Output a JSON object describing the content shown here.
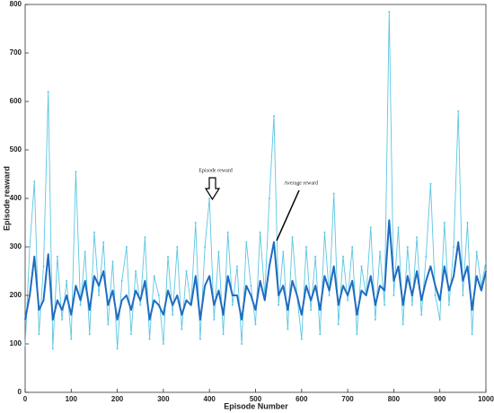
{
  "chart_data": {
    "type": "line",
    "xlabel": "Episode Number",
    "ylabel": "Episode reaward",
    "annotations": [
      "Episode reward",
      "Average reward"
    ],
    "xlim": [
      0,
      1000
    ],
    "ylim": [
      0,
      800
    ],
    "xticks": [
      0,
      100,
      200,
      300,
      400,
      500,
      600,
      700,
      800,
      900,
      1000
    ],
    "yticks": [
      0,
      100,
      200,
      300,
      400,
      500,
      600,
      700,
      800
    ],
    "x": [
      0,
      10,
      20,
      30,
      40,
      50,
      60,
      70,
      80,
      90,
      100,
      110,
      120,
      130,
      140,
      150,
      160,
      170,
      180,
      190,
      200,
      210,
      220,
      230,
      240,
      250,
      260,
      270,
      280,
      290,
      300,
      310,
      320,
      330,
      340,
      350,
      360,
      370,
      380,
      390,
      400,
      410,
      420,
      430,
      440,
      450,
      460,
      470,
      480,
      490,
      500,
      510,
      520,
      530,
      540,
      550,
      560,
      570,
      580,
      590,
      600,
      610,
      620,
      630,
      640,
      650,
      660,
      670,
      680,
      690,
      700,
      710,
      720,
      730,
      740,
      750,
      760,
      770,
      780,
      790,
      800,
      810,
      820,
      830,
      840,
      850,
      860,
      870,
      880,
      890,
      900,
      910,
      920,
      930,
      940,
      950,
      960,
      970,
      980,
      990,
      1000
    ],
    "series": [
      {
        "name": "Episode reward",
        "color": "#5cc6e2",
        "values": [
          95,
          300,
          435,
          120,
          260,
          620,
          90,
          280,
          150,
          230,
          110,
          455,
          180,
          290,
          120,
          330,
          200,
          310,
          140,
          270,
          90,
          230,
          300,
          120,
          250,
          180,
          320,
          110,
          240,
          200,
          100,
          280,
          160,
          300,
          130,
          250,
          180,
          350,
          110,
          300,
          400,
          150,
          290,
          120,
          330,
          180,
          260,
          100,
          310,
          220,
          140,
          330,
          200,
          400,
          570,
          180,
          290,
          130,
          320,
          200,
          110,
          300,
          170,
          280,
          120,
          330,
          200,
          410,
          140,
          280,
          190,
          300,
          120,
          260,
          200,
          340,
          150,
          290,
          180,
          785,
          200,
          340,
          140,
          300,
          180,
          320,
          160,
          280,
          430,
          200,
          150,
          350,
          180,
          300,
          580,
          200,
          350,
          120,
          290,
          220,
          270
        ]
      },
      {
        "name": "Average reward",
        "color": "#1f6cc0",
        "values": [
          150,
          200,
          280,
          170,
          190,
          285,
          150,
          190,
          170,
          200,
          160,
          220,
          190,
          230,
          170,
          240,
          220,
          250,
          180,
          210,
          150,
          190,
          200,
          170,
          210,
          190,
          230,
          150,
          190,
          180,
          160,
          210,
          180,
          200,
          160,
          190,
          180,
          240,
          150,
          220,
          240,
          180,
          210,
          160,
          240,
          200,
          200,
          150,
          220,
          200,
          170,
          230,
          190,
          260,
          310,
          200,
          220,
          170,
          230,
          200,
          160,
          220,
          190,
          220,
          170,
          240,
          210,
          260,
          180,
          220,
          200,
          230,
          160,
          210,
          200,
          240,
          180,
          220,
          210,
          355,
          230,
          260,
          180,
          240,
          200,
          250,
          190,
          230,
          260,
          220,
          190,
          260,
          210,
          240,
          310,
          230,
          260,
          170,
          240,
          210,
          250
        ]
      }
    ]
  }
}
